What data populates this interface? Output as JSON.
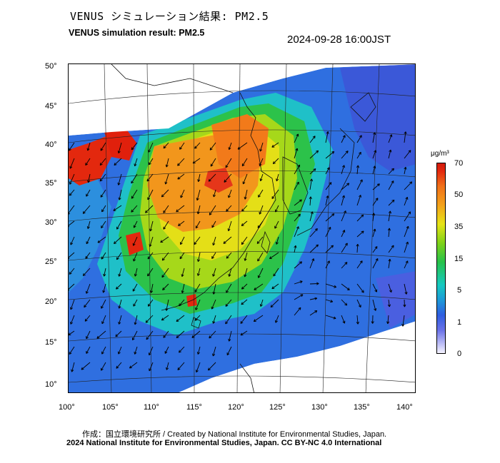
{
  "header": {
    "title_jp": "VENUS シミュレーション結果: PM2.5",
    "title_en": "VENUS simulation result: PM2.5",
    "timestamp": "2024-09-28 16:00JST"
  },
  "map": {
    "lat_ticks": [
      "50°",
      "45°",
      "40°",
      "35°",
      "30°",
      "25°",
      "20°",
      "15°",
      "10°"
    ],
    "lon_ticks": [
      "100°",
      "105°",
      "110°",
      "115°",
      "120°",
      "125°",
      "130°",
      "135°",
      "140°"
    ],
    "ocean_color": "#3f7fdd",
    "land_hot_color": "#e3280e",
    "wind_vector_color": "#000000"
  },
  "colorbar": {
    "unit": "μg/m³",
    "levels": [
      "70",
      "50",
      "35",
      "15",
      "5",
      "1",
      "0"
    ]
  },
  "footer": {
    "credit": "作成：国立環境研究所 / Created by National Institute for Environmental Studies, Japan.",
    "license": "2024 National Institute for Environmental Studies, Japan. CC BY-NC 4.0 International"
  }
}
